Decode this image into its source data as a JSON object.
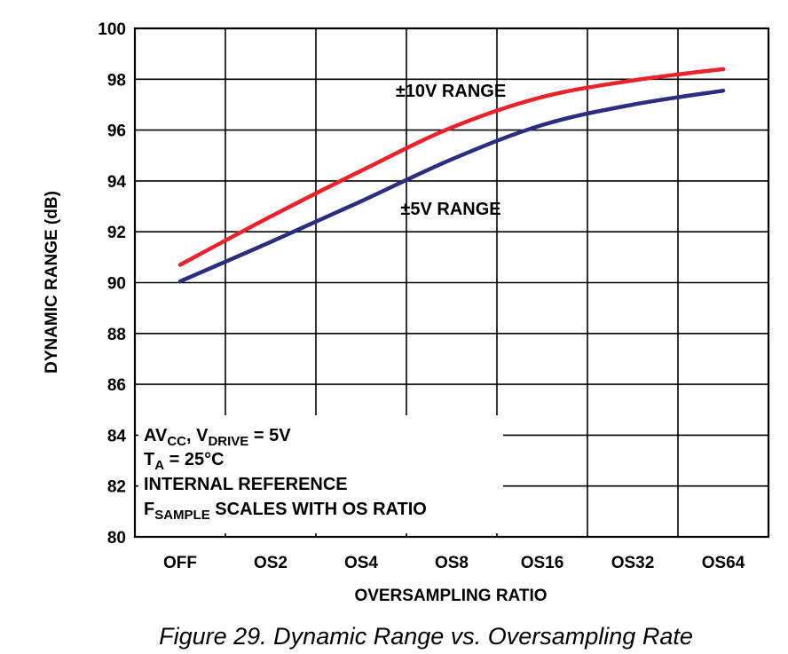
{
  "chart_data": {
    "type": "line",
    "xlabel": "OVERSAMPLING RATIO",
    "ylabel": "DYNAMIC RANGE (dB)",
    "categories": [
      "OFF",
      "OS2",
      "OS4",
      "OS8",
      "OS16",
      "OS32",
      "OS64"
    ],
    "ylim": [
      80,
      100
    ],
    "yticks": [
      80,
      82,
      84,
      86,
      88,
      90,
      92,
      94,
      96,
      98,
      100
    ],
    "grid": true,
    "series": [
      {
        "name": "±10V RANGE",
        "color": "#e8232b",
        "values": [
          90.7,
          92.6,
          94.4,
          96.1,
          97.3,
          97.95,
          98.4
        ]
      },
      {
        "name": "±5V RANGE",
        "color": "#2b2e7f",
        "values": [
          90.05,
          91.6,
          93.2,
          94.85,
          96.2,
          97.0,
          97.55
        ]
      }
    ],
    "conditions": {
      "line1": {
        "a": "AV",
        "a_sub": "CC",
        "b": ", V",
        "b_sub": "DRIVE",
        "c": " = 5V"
      },
      "line2": {
        "a": "T",
        "a_sub": "A",
        "b": " = 25°C"
      },
      "line3": "INTERNAL REFERENCE",
      "line4": {
        "a": "F",
        "a_sub": "SAMPLE",
        "b": " SCALES WITH OS RATIO"
      }
    }
  },
  "caption": "Figure 29. Dynamic Range vs. Oversampling Rate"
}
